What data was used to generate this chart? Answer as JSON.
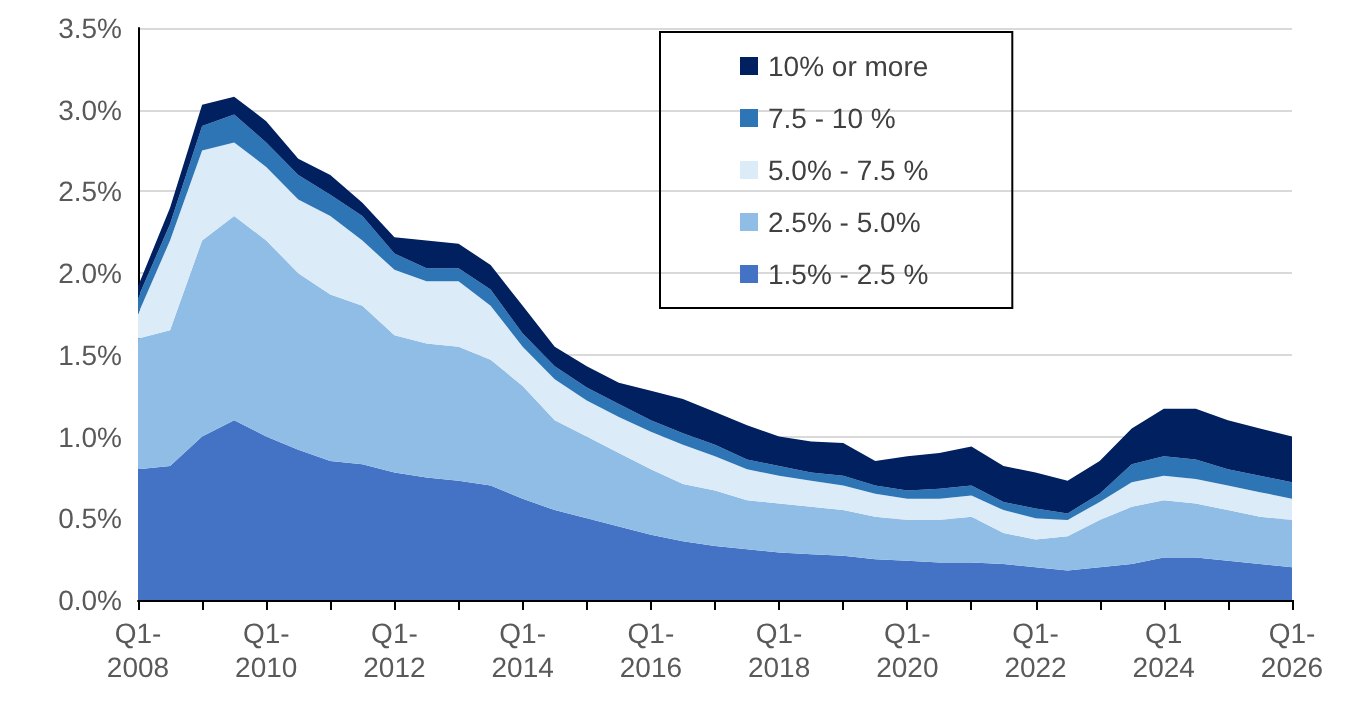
{
  "chart_data": {
    "type": "area",
    "stacked": true,
    "grid": "y",
    "legend": "top",
    "categories": [
      "Q1-\n2008",
      null,
      null,
      null,
      "Q1-\n2010",
      null,
      null,
      null,
      "Q1-\n2012",
      null,
      null,
      null,
      "Q1-\n2014",
      null,
      null,
      null,
      "Q1-\n2016",
      null,
      null,
      null,
      "Q1-\n2018",
      null,
      null,
      null,
      "Q1-\n2020",
      null,
      null,
      null,
      "Q1-\n2022",
      null,
      null,
      null,
      "Q1\n2024",
      null,
      null,
      null,
      "Q1-\n2026"
    ],
    "ylim": [
      0,
      3.5
    ],
    "yticks": [
      {
        "value": 0,
        "label": "0.0%"
      },
      {
        "value": 0.5,
        "label": "0.5%"
      },
      {
        "value": 1,
        "label": "1.0%"
      },
      {
        "value": 1.5,
        "label": "1.5%"
      },
      {
        "value": 2,
        "label": "2.0%"
      },
      {
        "value": 2.5,
        "label": "2.5%"
      },
      {
        "value": 3,
        "label": "3.0%"
      },
      {
        "value": 3.5,
        "label": "3.5%"
      }
    ],
    "series": [
      {
        "name": "1.5% - 2.5 %",
        "color": "#4472c4",
        "values": [
          0.8,
          0.82,
          1.0,
          1.1,
          1.0,
          0.92,
          0.85,
          0.83,
          0.78,
          0.75,
          0.73,
          0.7,
          0.62,
          0.55,
          0.5,
          0.45,
          0.4,
          0.36,
          0.33,
          0.31,
          0.29,
          0.28,
          0.27,
          0.25,
          0.24,
          0.23,
          0.23,
          0.22,
          0.2,
          0.18,
          0.2,
          0.22,
          0.26,
          0.26,
          0.24,
          0.22,
          0.2
        ]
      },
      {
        "name": "2.5% - 5.0%",
        "color": "#8fbde6",
        "values": [
          0.8,
          0.83,
          1.2,
          1.25,
          1.2,
          1.08,
          1.02,
          0.97,
          0.84,
          0.82,
          0.82,
          0.77,
          0.69,
          0.55,
          0.5,
          0.45,
          0.4,
          0.35,
          0.34,
          0.3,
          0.3,
          0.29,
          0.28,
          0.26,
          0.25,
          0.26,
          0.28,
          0.19,
          0.17,
          0.21,
          0.29,
          0.35,
          0.35,
          0.33,
          0.31,
          0.29,
          0.29
        ]
      },
      {
        "name": "5.0% - 7.5 %",
        "color": "#dcebf8",
        "values": [
          0.15,
          0.55,
          0.55,
          0.45,
          0.45,
          0.45,
          0.48,
          0.4,
          0.4,
          0.38,
          0.4,
          0.33,
          0.24,
          0.25,
          0.22,
          0.22,
          0.23,
          0.24,
          0.21,
          0.19,
          0.17,
          0.16,
          0.15,
          0.14,
          0.13,
          0.13,
          0.13,
          0.14,
          0.13,
          0.1,
          0.11,
          0.15,
          0.15,
          0.15,
          0.15,
          0.15,
          0.13
        ]
      },
      {
        "name": "7.5 - 10 %",
        "color": "#2e75b6",
        "values": [
          0.1,
          0.1,
          0.15,
          0.17,
          0.15,
          0.15,
          0.13,
          0.15,
          0.1,
          0.08,
          0.08,
          0.1,
          0.08,
          0.08,
          0.08,
          0.08,
          0.07,
          0.07,
          0.07,
          0.06,
          0.06,
          0.05,
          0.06,
          0.05,
          0.05,
          0.06,
          0.06,
          0.05,
          0.06,
          0.04,
          0.05,
          0.11,
          0.12,
          0.12,
          0.1,
          0.1,
          0.1
        ]
      },
      {
        "name": "10% or more",
        "color": "#002060",
        "values": [
          0.07,
          0.1,
          0.13,
          0.11,
          0.13,
          0.1,
          0.12,
          0.08,
          0.1,
          0.17,
          0.15,
          0.15,
          0.17,
          0.12,
          0.13,
          0.13,
          0.18,
          0.21,
          0.2,
          0.21,
          0.18,
          0.19,
          0.2,
          0.15,
          0.21,
          0.22,
          0.24,
          0.22,
          0.22,
          0.2,
          0.2,
          0.22,
          0.29,
          0.31,
          0.3,
          0.29,
          0.28
        ]
      }
    ]
  }
}
